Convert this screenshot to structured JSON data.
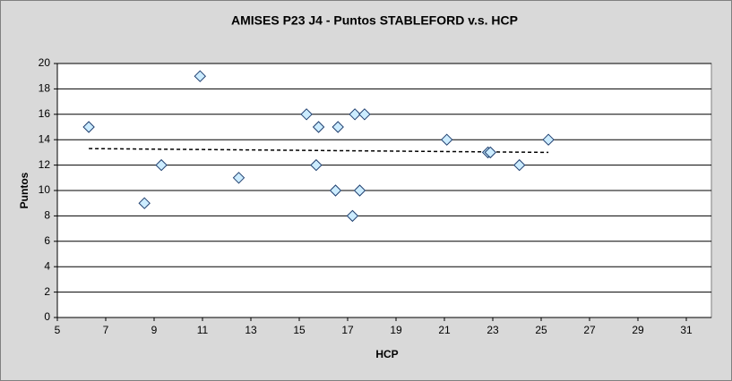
{
  "chart_data": {
    "type": "scatter",
    "title": "AMISES P23 J4 - Puntos STABLEFORD v.s. HCP",
    "x_label": "HCP",
    "y_label": "Puntos",
    "x": [
      6.3,
      8.6,
      9.3,
      10.9,
      12.5,
      15.3,
      15.8,
      15.7,
      16.5,
      16.6,
      17.2,
      17.3,
      17.5,
      17.7,
      21.1,
      22.8,
      22.9,
      24.1,
      25.3
    ],
    "values": [
      15,
      9,
      12,
      19,
      11,
      16,
      15,
      12,
      10,
      15,
      8,
      16,
      10,
      16,
      14,
      13,
      13,
      12,
      14
    ],
    "color": "#ccecff",
    "edge_color": "#1f3f6f",
    "trendline": {
      "x": [
        6.3,
        25.3
      ],
      "values": [
        13.3,
        13.0
      ]
    },
    "xlim": [
      5,
      31
    ],
    "xticks": [
      5,
      7,
      9,
      11,
      13,
      15,
      17,
      19,
      21,
      23,
      25,
      27,
      29,
      31
    ],
    "ylim": [
      0,
      20
    ],
    "yticks": [
      0,
      2,
      4,
      6,
      8,
      10,
      12,
      14,
      16,
      18,
      20
    ],
    "grid": true
  }
}
